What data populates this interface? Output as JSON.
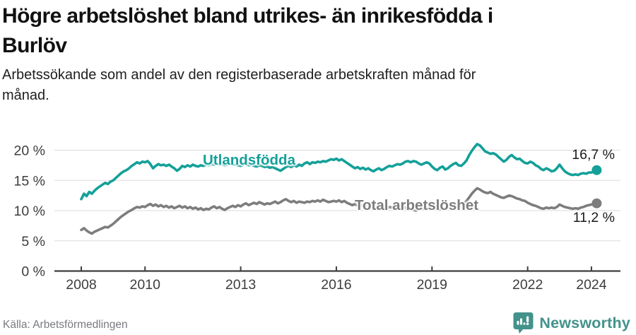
{
  "page": {
    "title_lines": [
      "Högre arbetslöshet bland utrikes- än inrikesfödda i",
      "Burlöv"
    ],
    "subtitle_lines": [
      "Arbetssökande som andel av den registerbaserade arbetskraften månad för",
      "månad."
    ],
    "source": "Källa: Arbetsförmedlingen",
    "brand": {
      "name": "Newsworthy",
      "color": "#43928b"
    }
  },
  "chart_data": {
    "type": "line",
    "unit": "%",
    "x_start": "2008-01",
    "x_end": "2024-03",
    "x_tick_years": [
      2008,
      2010,
      2013,
      2016,
      2019,
      2022,
      2024
    ],
    "y_tick_values": [
      0,
      5,
      10,
      15,
      20
    ],
    "ylim": [
      0,
      22.5
    ],
    "grid": true,
    "legend_position": "inline",
    "colors": {
      "grid": "#dbdbdb",
      "axis": "#3d3d3d"
    },
    "series": [
      {
        "name": "Utlandsfödda",
        "color": "#14a099",
        "end_label": "16,7 %",
        "end_value": 16.7,
        "values": [
          11.9,
          12.8,
          12.4,
          13.1,
          12.8,
          13.3,
          13.7,
          14.0,
          14.3,
          14.6,
          14.4,
          14.8,
          15.0,
          15.4,
          15.8,
          16.2,
          16.5,
          16.7,
          17.0,
          17.4,
          17.7,
          18.0,
          17.8,
          18.1,
          18.0,
          18.2,
          17.7,
          17.0,
          17.4,
          17.7,
          17.5,
          17.6,
          17.4,
          17.6,
          17.3,
          17.0,
          16.6,
          16.9,
          17.4,
          17.2,
          17.5,
          17.3,
          17.6,
          17.4,
          17.3,
          17.5,
          17.4,
          17.6,
          17.5,
          17.7,
          17.6,
          17.8,
          17.6,
          17.7,
          17.5,
          17.6,
          17.8,
          17.6,
          17.7,
          17.5,
          17.4,
          17.6,
          17.7,
          17.5,
          17.6,
          17.4,
          17.3,
          17.5,
          17.4,
          17.2,
          17.3,
          17.1,
          17.2,
          17.0,
          16.8,
          16.6,
          16.9,
          17.2,
          17.4,
          17.2,
          17.5,
          17.3,
          17.6,
          17.4,
          17.8,
          18.0,
          17.7,
          18.0,
          17.9,
          18.1,
          18.0,
          18.2,
          18.1,
          18.3,
          18.5,
          18.4,
          18.6,
          18.3,
          18.5,
          18.2,
          17.9,
          17.6,
          17.3,
          17.0,
          17.2,
          16.9,
          17.1,
          16.8,
          17.0,
          16.7,
          16.5,
          16.8,
          17.0,
          16.7,
          16.9,
          17.2,
          17.4,
          17.3,
          17.5,
          17.7,
          17.6,
          17.8,
          18.1,
          18.2,
          18.0,
          18.2,
          18.1,
          17.8,
          17.6,
          17.8,
          18.0,
          17.8,
          17.3,
          16.9,
          16.7,
          17.1,
          17.3,
          16.8,
          17.0,
          17.4,
          17.7,
          17.9,
          17.5,
          17.4,
          17.8,
          18.3,
          19.2,
          19.9,
          20.5,
          21.0,
          20.8,
          20.3,
          19.8,
          19.6,
          19.4,
          19.5,
          19.3,
          18.9,
          18.5,
          18.1,
          18.4,
          18.9,
          19.2,
          18.8,
          18.5,
          18.6,
          18.2,
          17.9,
          17.8,
          18.1,
          17.9,
          17.5,
          17.3,
          16.9,
          16.7,
          17.0,
          16.8,
          16.5,
          16.6,
          17.0,
          17.6,
          17.0,
          16.5,
          16.2,
          16.0,
          15.9,
          16.0,
          15.9,
          16.1,
          16.2,
          16.1,
          16.3,
          16.3,
          16.5,
          16.7
        ]
      },
      {
        "name": "Total arbetslöshet",
        "color": "#7d7d7d",
        "end_label": "11,2 %",
        "end_value": 11.2,
        "values": [
          6.8,
          7.1,
          6.7,
          6.4,
          6.2,
          6.5,
          6.7,
          6.9,
          7.1,
          7.3,
          7.2,
          7.5,
          7.8,
          8.2,
          8.6,
          9.0,
          9.3,
          9.6,
          9.9,
          10.1,
          10.4,
          10.6,
          10.5,
          10.7,
          10.6,
          10.9,
          11.1,
          10.8,
          11.0,
          10.7,
          10.9,
          10.6,
          10.8,
          10.5,
          10.7,
          10.4,
          10.6,
          10.8,
          10.5,
          10.7,
          10.4,
          10.6,
          10.3,
          10.5,
          10.2,
          10.4,
          10.1,
          10.3,
          10.2,
          10.5,
          10.7,
          10.4,
          10.6,
          10.3,
          10.1,
          10.4,
          10.6,
          10.8,
          10.6,
          10.9,
          10.7,
          11.0,
          11.2,
          10.9,
          11.1,
          11.3,
          11.1,
          11.4,
          11.2,
          11.0,
          11.2,
          11.1,
          11.3,
          11.5,
          11.2,
          11.4,
          11.7,
          11.9,
          11.6,
          11.4,
          11.6,
          11.3,
          11.5,
          11.4,
          11.3,
          11.5,
          11.4,
          11.6,
          11.5,
          11.7,
          11.5,
          11.8,
          11.6,
          11.4,
          11.5,
          11.6,
          11.5,
          11.7,
          11.4,
          11.6,
          11.3,
          11.1,
          10.9,
          11.1,
          10.8,
          10.9,
          10.7,
          10.8,
          10.6,
          10.9,
          10.7,
          10.4,
          10.6,
          10.3,
          10.2,
          10.4,
          10.6,
          10.5,
          10.7,
          10.6,
          10.4,
          10.7,
          10.5,
          10.2,
          10.4,
          10.1,
          10.0,
          10.2,
          10.4,
          10.3,
          10.5,
          10.4,
          10.3,
          10.6,
          10.4,
          10.2,
          10.5,
          10.3,
          10.6,
          10.8,
          11.0,
          10.9,
          10.7,
          10.9,
          11.2,
          11.6,
          12.2,
          12.8,
          13.3,
          13.7,
          13.5,
          13.2,
          13.0,
          12.9,
          13.1,
          12.8,
          12.6,
          12.4,
          12.2,
          12.1,
          12.3,
          12.5,
          12.4,
          12.2,
          12.0,
          11.9,
          11.7,
          11.6,
          11.3,
          11.1,
          10.9,
          10.8,
          10.6,
          10.4,
          10.3,
          10.5,
          10.4,
          10.5,
          10.4,
          10.6,
          11.0,
          10.8,
          10.6,
          10.5,
          10.4,
          10.3,
          10.4,
          10.3,
          10.5,
          10.6,
          10.8,
          10.9,
          11.0,
          11.1,
          11.2
        ]
      }
    ]
  }
}
